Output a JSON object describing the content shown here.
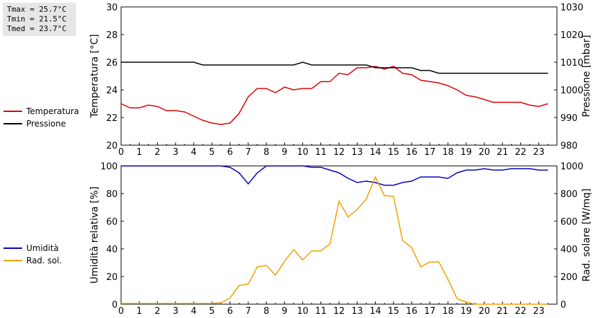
{
  "stats": {
    "tmax": "Tmax = 25.7°C",
    "tmin": "Tmin = 21.5°C",
    "tmed": "Tmed = 23.7°C"
  },
  "chart_data": [
    {
      "type": "line",
      "x_ticks": [
        "0",
        "1",
        "2",
        "3",
        "4",
        "5",
        "6",
        "7",
        "8",
        "9",
        "10",
        "11",
        "12",
        "13",
        "14",
        "15",
        "16",
        "17",
        "18",
        "19",
        "20",
        "21",
        "22",
        "23"
      ],
      "xlim": [
        0,
        24
      ],
      "ylabel_left": "Temperatura [°C]",
      "ylabel_right": "Pressione [mbar]",
      "ylim_left": [
        20,
        30
      ],
      "ylim_right": [
        980,
        1030
      ],
      "yticks_left": [
        "20",
        "22",
        "24",
        "26",
        "28",
        "30"
      ],
      "yticks_right": [
        "980",
        "990",
        "1000",
        "1010",
        "1020",
        "1030"
      ],
      "legend": [
        "Temperatura",
        "Pressione"
      ],
      "series": [
        {
          "name": "Temperatura",
          "axis": "left",
          "color": "#dd0000",
          "x": [
            0,
            0.5,
            1,
            1.5,
            2,
            2.5,
            3,
            3.5,
            4,
            4.5,
            5,
            5.5,
            6,
            6.5,
            7,
            7.5,
            8,
            8.5,
            9,
            9.5,
            10,
            10.5,
            11,
            11.5,
            12,
            12.5,
            13,
            13.5,
            14,
            14.5,
            15,
            15.5,
            16,
            16.5,
            17,
            17.5,
            18,
            18.5,
            19,
            19.5,
            20,
            20.5,
            21,
            21.5,
            22,
            22.5,
            23,
            23.5
          ],
          "y": [
            23.0,
            22.7,
            22.7,
            22.9,
            22.8,
            22.5,
            22.5,
            22.4,
            22.1,
            21.8,
            21.6,
            21.5,
            21.6,
            22.3,
            23.5,
            24.1,
            24.1,
            23.8,
            24.2,
            24.0,
            24.1,
            24.1,
            24.6,
            24.6,
            25.2,
            25.1,
            25.6,
            25.6,
            25.7,
            25.5,
            25.7,
            25.2,
            25.1,
            24.7,
            24.6,
            24.5,
            24.3,
            24.0,
            23.6,
            23.5,
            23.3,
            23.1,
            23.1,
            23.1,
            23.1,
            22.9,
            22.8,
            23.0
          ]
        },
        {
          "name": "Pressione",
          "axis": "right",
          "color": "#000000",
          "x": [
            0,
            0.5,
            1,
            1.5,
            2,
            2.5,
            3,
            3.5,
            4,
            4.5,
            5,
            5.5,
            6,
            6.5,
            7,
            7.5,
            8,
            8.5,
            9,
            9.5,
            10,
            10.5,
            11,
            11.5,
            12,
            12.5,
            13,
            13.5,
            14,
            14.5,
            15,
            15.5,
            16,
            16.5,
            17,
            17.5,
            18,
            18.5,
            19,
            19.5,
            20,
            20.5,
            21,
            21.5,
            22,
            22.5,
            23,
            23.5
          ],
          "y": [
            1010,
            1010,
            1010,
            1010,
            1010,
            1010,
            1010,
            1010,
            1010,
            1009,
            1009,
            1009,
            1009,
            1009,
            1009,
            1009,
            1009,
            1009,
            1009,
            1009,
            1010,
            1009,
            1009,
            1009,
            1009,
            1009,
            1009,
            1009,
            1008,
            1008,
            1008,
            1008,
            1008,
            1007,
            1007,
            1006,
            1006,
            1006,
            1006,
            1006,
            1006,
            1006,
            1006,
            1006,
            1006,
            1006,
            1006,
            1006
          ]
        }
      ]
    },
    {
      "type": "line",
      "x_ticks": [
        "0",
        "1",
        "2",
        "3",
        "4",
        "5",
        "6",
        "7",
        "8",
        "9",
        "10",
        "11",
        "12",
        "13",
        "14",
        "15",
        "16",
        "17",
        "18",
        "19",
        "20",
        "21",
        "22",
        "23"
      ],
      "xlim": [
        0,
        24
      ],
      "ylabel_left": "Umidità relativa [%]",
      "ylabel_right": "Rad. solare [W/mq]",
      "ylim_left": [
        0,
        100
      ],
      "ylim_right": [
        0,
        1000
      ],
      "yticks_left": [
        "0",
        "20",
        "40",
        "60",
        "80",
        "100"
      ],
      "yticks_right": [
        "0",
        "200",
        "400",
        "600",
        "800",
        "1000"
      ],
      "legend": [
        "Umidità",
        "Rad. sol."
      ],
      "series": [
        {
          "name": "Umidità",
          "axis": "left",
          "color": "#0000c0",
          "x": [
            0,
            0.5,
            1,
            1.5,
            2,
            2.5,
            3,
            3.5,
            4,
            4.5,
            5,
            5.5,
            6,
            6.5,
            7,
            7.5,
            8,
            8.5,
            9,
            9.5,
            10,
            10.5,
            11,
            11.5,
            12,
            12.5,
            13,
            13.5,
            14,
            14.5,
            15,
            15.5,
            16,
            16.5,
            17,
            17.5,
            18,
            18.5,
            19,
            19.5,
            20,
            20.5,
            21,
            21.5,
            22,
            22.5,
            23,
            23.5
          ],
          "y": [
            100,
            100,
            100,
            100,
            100,
            100,
            100,
            100,
            100,
            100,
            100,
            100,
            99,
            95,
            87,
            95,
            100,
            100,
            100,
            100,
            100,
            99,
            99,
            97,
            95,
            91,
            88,
            89,
            88,
            86,
            86,
            88,
            89,
            92,
            92,
            92,
            91,
            95,
            97,
            97,
            98,
            97,
            97,
            98,
            98,
            98,
            97,
            97
          ]
        },
        {
          "name": "Rad. sol.",
          "axis": "right",
          "color": "#f0a000",
          "x": [
            0,
            0.5,
            1,
            1.5,
            2,
            2.5,
            3,
            3.5,
            4,
            4.5,
            5,
            5.5,
            6,
            6.5,
            7,
            7.5,
            8,
            8.5,
            9,
            9.5,
            10,
            10.5,
            11,
            11.5,
            12,
            12.5,
            13,
            13.5,
            14,
            14.5,
            15,
            15.5,
            16,
            16.5,
            17,
            17.5,
            18,
            18.5,
            19,
            19.5,
            20,
            20.5,
            21,
            21.5,
            22,
            22.5,
            23,
            23.5
          ],
          "y": [
            5,
            5,
            5,
            5,
            5,
            5,
            5,
            5,
            5,
            5,
            5,
            10,
            45,
            135,
            145,
            270,
            280,
            210,
            310,
            395,
            320,
            385,
            385,
            435,
            745,
            630,
            685,
            760,
            920,
            785,
            780,
            460,
            410,
            270,
            305,
            305,
            180,
            40,
            15,
            0,
            0,
            0,
            0,
            0,
            0,
            0,
            0,
            0
          ]
        }
      ]
    }
  ]
}
